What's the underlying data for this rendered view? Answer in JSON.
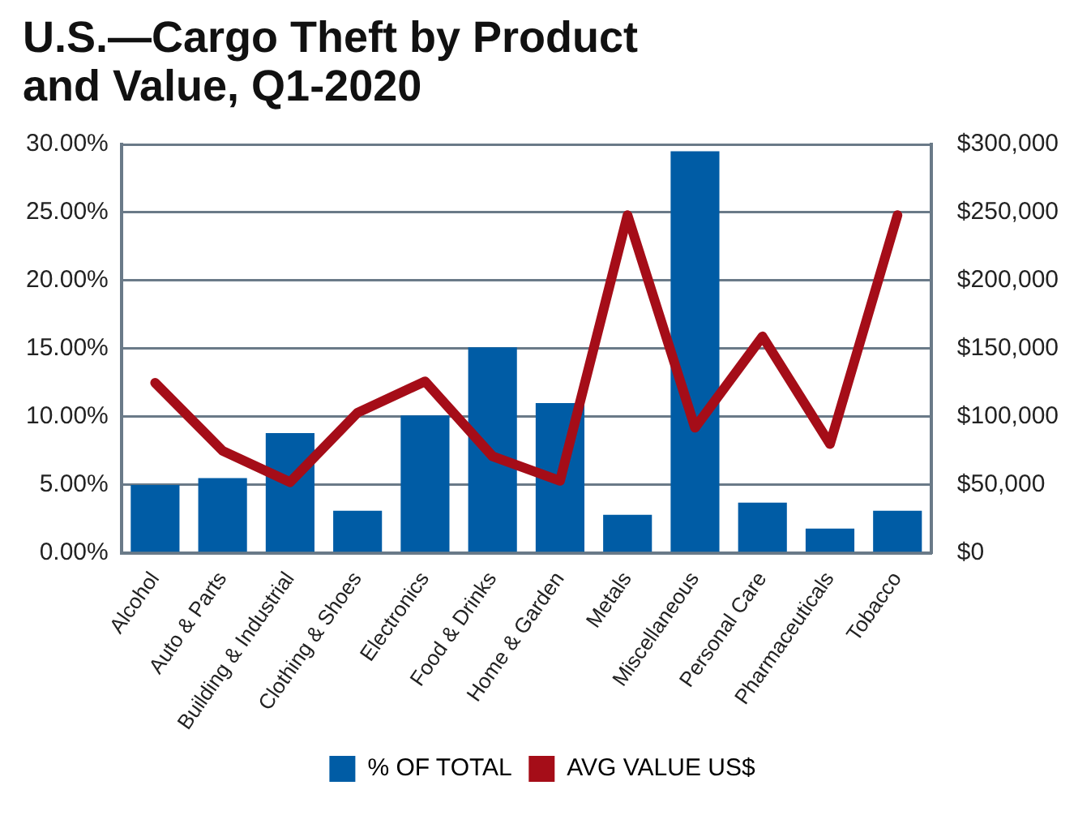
{
  "chart_data": {
    "type": "bar",
    "title": "U.S.—Cargo Theft by Product and Value, Q1-2020",
    "categories": [
      "Alcohol",
      "Auto & Parts",
      "Building & Industrial",
      "Clothing & Shoes",
      "Electronics",
      "Food & Drinks",
      "Home & Garden",
      "Metals",
      "Miscellaneous",
      "Personal Care",
      "Pharmaceuticals",
      "Tobacco"
    ],
    "series": [
      {
        "name": "% OF TOTAL",
        "color": "#005ca5",
        "values": [
          5.0,
          5.5,
          8.8,
          3.1,
          10.1,
          15.1,
          11.0,
          2.8,
          29.5,
          3.7,
          1.8,
          3.1
        ]
      },
      {
        "name": "AVG VALUE US$",
        "type": "line",
        "axis": "y2",
        "color": "#a50d18",
        "values": [
          125000,
          75000,
          52000,
          103000,
          126000,
          71000,
          53000,
          248000,
          92000,
          159000,
          80000,
          248000
        ]
      }
    ],
    "ylim": [
      0,
      30
    ],
    "yticks": [
      {
        "value": 0,
        "label": "0.00%"
      },
      {
        "value": 5,
        "label": "5.00%"
      },
      {
        "value": 10,
        "label": "10.00%"
      },
      {
        "value": 15,
        "label": "15.00%"
      },
      {
        "value": 20,
        "label": "20.00%"
      },
      {
        "value": 25,
        "label": "25.00%"
      },
      {
        "value": 30,
        "label": "30.00%"
      }
    ],
    "y2lim": [
      0,
      300000
    ],
    "y2ticks": [
      {
        "value": 0,
        "label": "$0"
      },
      {
        "value": 50000,
        "label": "$50,000"
      },
      {
        "value": 100000,
        "label": "$100,000"
      },
      {
        "value": 150000,
        "label": "$150,000"
      },
      {
        "value": 200000,
        "label": "$200,000"
      },
      {
        "value": 250000,
        "label": "$250,000"
      },
      {
        "value": 300000,
        "label": "$300,000"
      }
    ],
    "grid": "y",
    "legend": "bottom",
    "marker": "none"
  }
}
